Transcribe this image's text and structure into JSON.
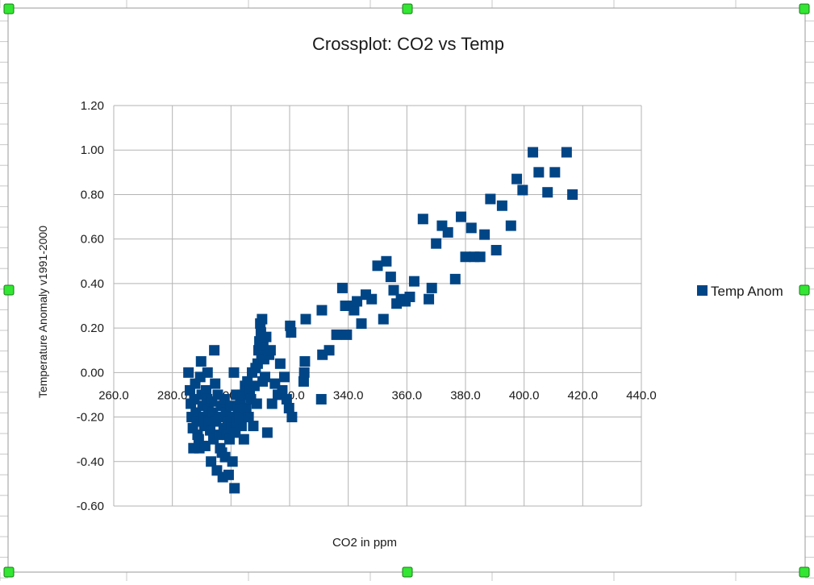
{
  "colors": {
    "series": "#004586",
    "grid": "#b3b3b3",
    "handle_fill": "#33e633",
    "handle_stroke": "#1a7a1a",
    "sheet_grid": "#c8c8c8",
    "frame": "#9a9a9a"
  },
  "chart_data": {
    "type": "scatter",
    "title": "Crossplot: CO2 vs Temp",
    "xlabel": "CO2 in ppm",
    "ylabel": "Temperature Anomaly v1991-2000",
    "xlim": [
      260,
      440
    ],
    "ylim": [
      -0.6,
      1.2
    ],
    "x_ticks": [
      260,
      280,
      300,
      320,
      340,
      360,
      380,
      400,
      420,
      440
    ],
    "y_ticks": [
      -0.6,
      -0.4,
      -0.2,
      0.0,
      0.2,
      0.4,
      0.6,
      0.8,
      1.0,
      1.2
    ],
    "x_tick_labels": [
      "260.0",
      "280.0",
      "300.0",
      "320.0",
      "340.0",
      "360.0",
      "380.0",
      "400.0",
      "420.0",
      "440.0"
    ],
    "y_tick_labels": [
      "-0.60",
      "-0.40",
      "-0.20",
      "0.00",
      "0.20",
      "0.40",
      "0.60",
      "0.80",
      "1.00",
      "1.20"
    ],
    "grid": true,
    "legend_position": "right",
    "series": [
      {
        "name": "Temp Anom",
        "marker": "square",
        "points": [
          [
            285.5,
            0.0
          ],
          [
            286.0,
            -0.08
          ],
          [
            286.3,
            -0.14
          ],
          [
            286.6,
            -0.2
          ],
          [
            287.0,
            -0.25
          ],
          [
            287.2,
            -0.34
          ],
          [
            287.5,
            -0.12
          ],
          [
            287.8,
            -0.05
          ],
          [
            288.0,
            -0.18
          ],
          [
            288.3,
            -0.22
          ],
          [
            288.6,
            -0.28
          ],
          [
            289.0,
            -0.3
          ],
          [
            289.2,
            -0.34
          ],
          [
            289.5,
            -0.02
          ],
          [
            289.8,
            0.05
          ],
          [
            290.0,
            -0.1
          ],
          [
            290.3,
            -0.15
          ],
          [
            290.6,
            -0.2
          ],
          [
            290.9,
            -0.24
          ],
          [
            291.2,
            -0.33
          ],
          [
            291.5,
            -0.08
          ],
          [
            291.8,
            -0.12
          ],
          [
            292.0,
            0.0
          ],
          [
            292.3,
            -0.17
          ],
          [
            292.6,
            -0.22
          ],
          [
            292.9,
            -0.26
          ],
          [
            293.2,
            -0.4
          ],
          [
            293.5,
            -0.13
          ],
          [
            293.8,
            -0.18
          ],
          [
            294.0,
            -0.3
          ],
          [
            294.3,
            0.1
          ],
          [
            294.6,
            -0.05
          ],
          [
            294.9,
            -0.22
          ],
          [
            295.2,
            -0.44
          ],
          [
            295.5,
            -0.1
          ],
          [
            295.8,
            -0.2
          ],
          [
            296.0,
            -0.28
          ],
          [
            296.3,
            -0.34
          ],
          [
            296.6,
            -0.15
          ],
          [
            296.9,
            -0.36
          ],
          [
            297.2,
            -0.47
          ],
          [
            297.5,
            -0.25
          ],
          [
            297.8,
            -0.12
          ],
          [
            298.0,
            -0.38
          ],
          [
            298.3,
            -0.18
          ],
          [
            298.6,
            -0.28
          ],
          [
            298.9,
            -0.22
          ],
          [
            299.2,
            -0.46
          ],
          [
            299.5,
            -0.3
          ],
          [
            299.8,
            -0.15
          ],
          [
            300.2,
            -0.24
          ],
          [
            300.5,
            -0.4
          ],
          [
            300.8,
            -0.2
          ],
          [
            301.0,
            0.0
          ],
          [
            301.2,
            -0.52
          ],
          [
            301.5,
            -0.27
          ],
          [
            301.8,
            -0.1
          ],
          [
            302.0,
            -0.22
          ],
          [
            302.4,
            -0.16
          ],
          [
            302.8,
            -0.2
          ],
          [
            303.2,
            -0.12
          ],
          [
            303.6,
            -0.24
          ],
          [
            304.0,
            -0.1
          ],
          [
            304.4,
            -0.3
          ],
          [
            304.8,
            -0.06
          ],
          [
            305.2,
            -0.16
          ],
          [
            305.6,
            -0.04
          ],
          [
            306.0,
            -0.2
          ],
          [
            306.4,
            -0.08
          ],
          [
            306.8,
            -0.12
          ],
          [
            307.2,
            0.0
          ],
          [
            307.6,
            -0.24
          ],
          [
            308.0,
            -0.06
          ],
          [
            308.4,
            0.02
          ],
          [
            308.8,
            -0.14
          ],
          [
            309.1,
            0.04
          ],
          [
            309.4,
            0.1
          ],
          [
            309.7,
            0.14
          ],
          [
            310.0,
            0.22
          ],
          [
            310.2,
            0.18
          ],
          [
            310.4,
            0.08
          ],
          [
            310.6,
            0.24
          ],
          [
            310.8,
            -0.04
          ],
          [
            311.0,
            0.12
          ],
          [
            311.3,
            0.06
          ],
          [
            311.6,
            -0.02
          ],
          [
            312.0,
            0.16
          ],
          [
            312.4,
            -0.27
          ],
          [
            313.0,
            0.08
          ],
          [
            313.5,
            0.1
          ],
          [
            314.0,
            -0.14
          ],
          [
            315.0,
            -0.05
          ],
          [
            316.0,
            -0.1
          ],
          [
            316.8,
            0.04
          ],
          [
            317.5,
            -0.08
          ],
          [
            318.2,
            -0.02
          ],
          [
            319.0,
            -0.12
          ],
          [
            319.8,
            -0.16
          ],
          [
            320.2,
            0.21
          ],
          [
            320.5,
            0.18
          ],
          [
            320.8,
            -0.2
          ],
          [
            325.5,
            0.24
          ],
          [
            325.2,
            0.05
          ],
          [
            325.0,
            0.0
          ],
          [
            324.8,
            -0.04
          ],
          [
            331.0,
            0.28
          ],
          [
            331.2,
            0.08
          ],
          [
            330.8,
            -0.12
          ],
          [
            333.5,
            0.1
          ],
          [
            336.0,
            0.17
          ],
          [
            338.0,
            0.38
          ],
          [
            339.0,
            0.3
          ],
          [
            339.5,
            0.17
          ],
          [
            341.0,
            0.3
          ],
          [
            342.0,
            0.28
          ],
          [
            343.0,
            0.32
          ],
          [
            344.5,
            0.22
          ],
          [
            346.0,
            0.35
          ],
          [
            348.0,
            0.33
          ],
          [
            350.0,
            0.48
          ],
          [
            352.0,
            0.24
          ],
          [
            353.0,
            0.5
          ],
          [
            354.5,
            0.43
          ],
          [
            355.5,
            0.37
          ],
          [
            356.5,
            0.31
          ],
          [
            358.0,
            0.33
          ],
          [
            359.5,
            0.32
          ],
          [
            361.0,
            0.34
          ],
          [
            362.5,
            0.41
          ],
          [
            365.5,
            0.69
          ],
          [
            367.5,
            0.33
          ],
          [
            368.5,
            0.38
          ],
          [
            370.0,
            0.58
          ],
          [
            372.0,
            0.66
          ],
          [
            374.0,
            0.63
          ],
          [
            376.5,
            0.42
          ],
          [
            378.5,
            0.7
          ],
          [
            380.0,
            0.52
          ],
          [
            382.0,
            0.65
          ],
          [
            383.0,
            0.52
          ],
          [
            385.0,
            0.52
          ],
          [
            386.5,
            0.62
          ],
          [
            388.5,
            0.78
          ],
          [
            390.5,
            0.55
          ],
          [
            392.5,
            0.75
          ],
          [
            395.5,
            0.66
          ],
          [
            397.5,
            0.87
          ],
          [
            399.5,
            0.82
          ],
          [
            403.0,
            0.99
          ],
          [
            405.0,
            0.9
          ],
          [
            408.0,
            0.81
          ],
          [
            410.5,
            0.9
          ],
          [
            414.5,
            0.99
          ],
          [
            416.5,
            0.8
          ]
        ]
      }
    ]
  }
}
